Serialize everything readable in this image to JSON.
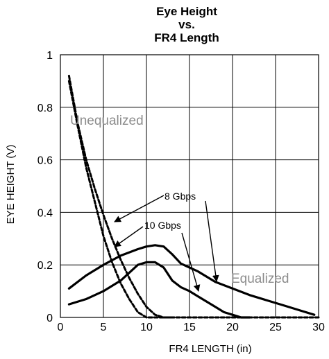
{
  "chart_data": {
    "type": "line",
    "title_lines": [
      "Eye Height",
      "vs.",
      "FR4 Length"
    ],
    "xlabel": "FR4 LENGTH (in)",
    "ylabel": "EYE HEIGHT (V)",
    "xlim": [
      0,
      30
    ],
    "ylim": [
      0,
      1
    ],
    "x_ticks": [
      0,
      5,
      10,
      15,
      20,
      25,
      30
    ],
    "y_ticks": [
      0,
      0.2,
      0.4,
      0.6,
      0.8,
      1
    ],
    "x_tick_labels": [
      "0",
      "5",
      "10",
      "15",
      "20",
      "25",
      "30"
    ],
    "y_tick_labels": [
      "0",
      "0.2",
      "0.4",
      "0.6",
      "0.8",
      "1"
    ],
    "grid": true,
    "series": [
      {
        "name": "Unequalized 8 Gbps",
        "style": "dashed",
        "color": "#000000",
        "x": [
          1,
          2,
          3,
          4,
          5,
          6,
          7,
          8,
          9,
          10,
          11,
          12,
          13
        ],
        "y": [
          0.92,
          0.74,
          0.6,
          0.49,
          0.39,
          0.3,
          0.22,
          0.15,
          0.09,
          0.04,
          0.01,
          0.0,
          0.0
        ]
      },
      {
        "name": "Unequalized 10 Gbps",
        "style": "dashed",
        "color": "#000000",
        "x": [
          1,
          2,
          3,
          4,
          5,
          6,
          7,
          8,
          9,
          10,
          11,
          12,
          30
        ],
        "y": [
          0.9,
          0.73,
          0.57,
          0.44,
          0.31,
          0.21,
          0.13,
          0.07,
          0.02,
          0.0,
          0.0,
          0.0,
          0.0
        ]
      },
      {
        "name": "Equalized 8 Gbps",
        "style": "solid",
        "color": "#000000",
        "x": [
          1,
          3,
          5,
          7,
          9,
          10,
          11,
          12,
          13,
          14,
          15,
          16,
          17,
          18,
          20,
          22,
          24,
          26,
          28,
          29.5
        ],
        "y": [
          0.11,
          0.16,
          0.2,
          0.235,
          0.26,
          0.27,
          0.275,
          0.27,
          0.24,
          0.205,
          0.19,
          0.175,
          0.155,
          0.135,
          0.11,
          0.085,
          0.065,
          0.045,
          0.025,
          0.01
        ]
      },
      {
        "name": "Equalized 10 Gbps",
        "style": "solid",
        "color": "#000000",
        "x": [
          1,
          3,
          5,
          7,
          8,
          9,
          10,
          11,
          12,
          13,
          14,
          15,
          16,
          17,
          18,
          19,
          20,
          21,
          22
        ],
        "y": [
          0.05,
          0.07,
          0.1,
          0.14,
          0.17,
          0.2,
          0.21,
          0.21,
          0.19,
          0.14,
          0.115,
          0.1,
          0.08,
          0.06,
          0.04,
          0.02,
          0.01,
          0.0,
          0.0
        ]
      }
    ],
    "annotations": [
      {
        "text": "Unequalized",
        "style": "gray"
      },
      {
        "text": "Equalized",
        "style": "gray"
      },
      {
        "text": "8 Gbps",
        "style": "black"
      },
      {
        "text": "10 Gbps",
        "style": "black"
      }
    ]
  }
}
